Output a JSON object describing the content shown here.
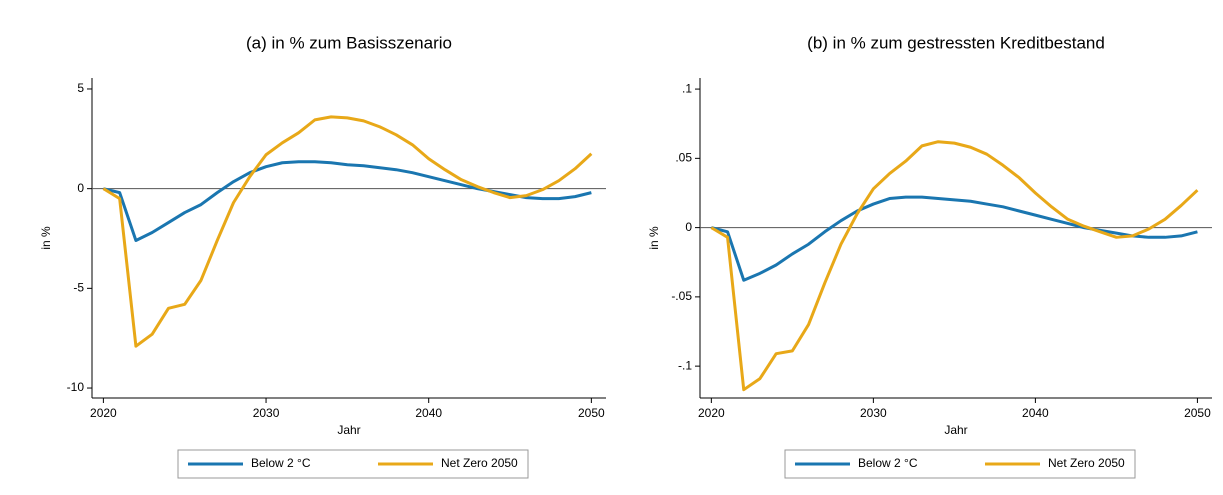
{
  "chart_data": [
    {
      "type": "line",
      "title": "(a)  in % zum Basisszenario",
      "x_label": "Jahr",
      "y_label": "in %",
      "x": [
        2020,
        2021,
        2022,
        2023,
        2024,
        2025,
        2026,
        2027,
        2028,
        2029,
        2030,
        2031,
        2032,
        2033,
        2034,
        2035,
        2036,
        2037,
        2038,
        2039,
        2040,
        2041,
        2042,
        2043,
        2044,
        2045,
        2046,
        2047,
        2048,
        2049,
        2050
      ],
      "series": [
        {
          "name": "Below 2 °C",
          "color": "#1a76b0",
          "values": [
            0,
            -0.2,
            -2.6,
            -2.2,
            -1.7,
            -1.2,
            -0.8,
            -0.2,
            0.35,
            0.8,
            1.1,
            1.3,
            1.35,
            1.35,
            1.3,
            1.2,
            1.15,
            1.05,
            0.95,
            0.8,
            0.6,
            0.4,
            0.2,
            0.0,
            -0.15,
            -0.3,
            -0.45,
            -0.5,
            -0.5,
            -0.4,
            -0.2
          ]
        },
        {
          "name": "Net Zero 2050",
          "color": "#e8a818",
          "values": [
            0,
            -0.5,
            -7.9,
            -7.3,
            -6.0,
            -5.8,
            -4.6,
            -2.6,
            -0.7,
            0.6,
            1.7,
            2.3,
            2.8,
            3.45,
            3.6,
            3.55,
            3.4,
            3.1,
            2.7,
            2.2,
            1.5,
            0.95,
            0.45,
            0.1,
            -0.2,
            -0.45,
            -0.35,
            -0.05,
            0.4,
            1.0,
            1.75
          ]
        }
      ],
      "xlim": [
        2019.3,
        2050.9
      ],
      "xticks": [
        2020,
        2030,
        2040,
        2050
      ],
      "ylim": [
        -10.5,
        5.55
      ],
      "yticks": [
        5,
        0,
        -5,
        -10
      ],
      "reference_line": 0
    },
    {
      "type": "line",
      "title": "(b)  in % zum gestressten Kreditbestand",
      "x_label": "Jahr",
      "y_label": "in %",
      "x": [
        2020,
        2021,
        2022,
        2023,
        2024,
        2025,
        2026,
        2027,
        2028,
        2029,
        2030,
        2031,
        2032,
        2033,
        2034,
        2035,
        2036,
        2037,
        2038,
        2039,
        2040,
        2041,
        2042,
        2043,
        2044,
        2045,
        2046,
        2047,
        2048,
        2049,
        2050
      ],
      "series": [
        {
          "name": "Below 2 °C",
          "color": "#1a76b0",
          "values": [
            0,
            -0.003,
            -0.038,
            -0.033,
            -0.027,
            -0.019,
            -0.012,
            -0.003,
            0.005,
            0.012,
            0.017,
            0.021,
            0.022,
            0.022,
            0.021,
            0.02,
            0.019,
            0.017,
            0.015,
            0.012,
            0.009,
            0.006,
            0.003,
            0.0,
            -0.002,
            -0.004,
            -0.006,
            -0.007,
            -0.007,
            -0.006,
            -0.003
          ]
        },
        {
          "name": "Net Zero 2050",
          "color": "#e8a818",
          "values": [
            0,
            -0.007,
            -0.117,
            -0.109,
            -0.091,
            -0.089,
            -0.07,
            -0.04,
            -0.012,
            0.01,
            0.028,
            0.039,
            0.048,
            0.059,
            0.062,
            0.061,
            0.058,
            0.053,
            0.045,
            0.036,
            0.025,
            0.015,
            0.006,
            0.001,
            -0.003,
            -0.007,
            -0.006,
            -0.001,
            0.006,
            0.016,
            0.027
          ]
        }
      ],
      "xlim": [
        2019.3,
        2050.9
      ],
      "xticks": [
        2020,
        2030,
        2040,
        2050
      ],
      "ylim": [
        -0.123,
        0.108
      ],
      "yticks": [
        {
          "value": 0.1,
          "label": ".1"
        },
        {
          "value": 0.05,
          "label": ".05"
        },
        0,
        {
          "value": -0.05,
          "label": "-.05"
        },
        {
          "value": -0.1,
          "label": "-.1"
        }
      ],
      "reference_line": 0
    }
  ]
}
